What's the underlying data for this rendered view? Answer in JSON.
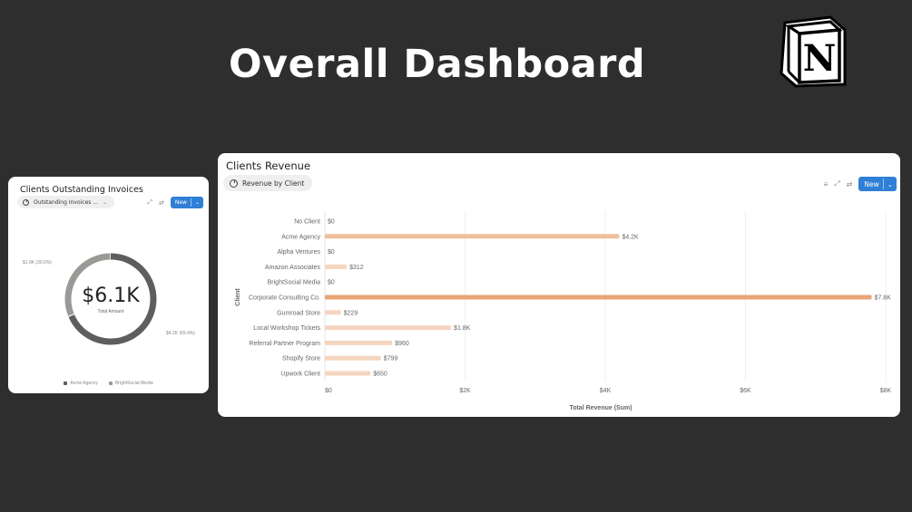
{
  "page": {
    "title": "Overall Dashboard"
  },
  "logo": {
    "letter": "N",
    "icon": "notion-logo"
  },
  "outstanding": {
    "title": "Clients Outstanding Invoices",
    "view_label": "Outstanding Invoices ...",
    "new_label": "New",
    "center_value": "$6.1K",
    "center_caption": "Total Amount",
    "label_small": "$1.9K (30.6%)",
    "label_large": "$4.2K (69.4%)",
    "chart_data": {
      "type": "pie",
      "categories": [
        "Acme Agency",
        "BrightSocial Media"
      ],
      "values": [
        4.2,
        1.9
      ],
      "percent": [
        69.4,
        30.6
      ],
      "center_text": "$6.1K",
      "legend_position": "bottom",
      "colors": [
        "#5e5e5c",
        "#999996"
      ]
    },
    "legend": [
      "Acme Agency",
      "BrightSocial Media"
    ]
  },
  "revenue": {
    "title": "Clients Revenue",
    "view_label": "Revenue by Client",
    "new_label": "New",
    "chart_data": {
      "type": "bar",
      "orientation": "horizontal",
      "categories": [
        "No Client",
        "Acme Agency",
        "Alpha Ventures",
        "Amazon Associates",
        "BrightSocial Media",
        "Corporate Consulting Co.",
        "Gumroad Store",
        "Local Workshop Tickets",
        "Referral Partner Program",
        "Shopify Store",
        "Upwork Client"
      ],
      "values": [
        0,
        4200,
        0,
        312,
        0,
        7800,
        229,
        1800,
        960,
        799,
        650
      ],
      "value_labels": [
        "$0",
        "$4.2K",
        "$0",
        "$312",
        "$0",
        "$7.8K",
        "$229",
        "$1.8K",
        "$960",
        "$799",
        "$650"
      ],
      "xlabel": "Total Revenue (Sum)",
      "ylabel": "Client",
      "xlim": [
        0,
        8000
      ],
      "xticks": [
        0,
        2000,
        4000,
        6000,
        8000
      ],
      "xtick_labels": [
        "$0",
        "$2K",
        "$4K",
        "$6K",
        "$8K"
      ],
      "grid": true,
      "colors": {
        "low": "#f5d5c0",
        "high": "#e8a474"
      }
    }
  }
}
